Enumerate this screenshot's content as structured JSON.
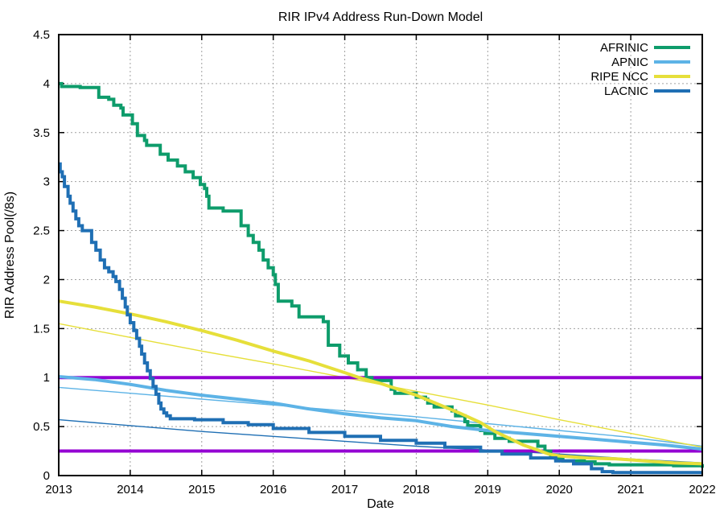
{
  "chart_data": {
    "type": "line",
    "title": "RIR IPv4 Address Run-Down Model",
    "xlabel": "Date",
    "ylabel": "RIR Address Pool(/8s)",
    "xlim": [
      2013,
      2022
    ],
    "ylim": [
      0,
      4.5
    ],
    "xticks": [
      2013,
      2014,
      2015,
      2016,
      2017,
      2018,
      2019,
      2020,
      2021,
      2022
    ],
    "yticks": [
      0,
      0.5,
      1,
      1.5,
      2,
      2.5,
      3,
      3.5,
      4,
      4.5
    ],
    "ytick_labels": [
      "0",
      "0.5",
      "1",
      "1.5",
      "2",
      "2.5",
      "3",
      "3.5",
      "4",
      "4.5"
    ],
    "grid": true,
    "legend_position": "top-right",
    "legend": [
      "AFRINIC",
      "APNIC",
      "RIPE NCC",
      "LACNIC"
    ],
    "colors": {
      "afrinic": "#0e9c6b",
      "apnic": "#5db3e6",
      "ripe_ncc": "#e6df3a",
      "lacnic": "#1f6fb4",
      "threshold": "#9400d3",
      "grid": "#a0a0a0",
      "border": "#000000"
    },
    "thresholds": [
      {
        "y": 1.0,
        "color": "#9400d3"
      },
      {
        "y": 0.25,
        "color": "#9400d3"
      }
    ],
    "series": [
      {
        "name": "AFRINIC",
        "role": "actual",
        "legend": true,
        "step": true,
        "color": "#0e9c6b",
        "width": 4,
        "points": [
          [
            2013,
            4.0
          ],
          [
            2013.04,
            3.97
          ],
          [
            2013.3,
            3.96
          ],
          [
            2013.56,
            3.86
          ],
          [
            2013.7,
            3.84
          ],
          [
            2013.77,
            3.78
          ],
          [
            2013.87,
            3.75
          ],
          [
            2013.9,
            3.68
          ],
          [
            2014.03,
            3.59
          ],
          [
            2014.1,
            3.47
          ],
          [
            2014.2,
            3.42
          ],
          [
            2014.23,
            3.37
          ],
          [
            2014.42,
            3.28
          ],
          [
            2014.53,
            3.22
          ],
          [
            2014.66,
            3.16
          ],
          [
            2014.77,
            3.1
          ],
          [
            2014.88,
            3.04
          ],
          [
            2014.98,
            2.97
          ],
          [
            2015.04,
            2.93
          ],
          [
            2015.07,
            2.85
          ],
          [
            2015.1,
            2.73
          ],
          [
            2015.3,
            2.7
          ],
          [
            2015.55,
            2.55
          ],
          [
            2015.65,
            2.45
          ],
          [
            2015.72,
            2.38
          ],
          [
            2015.8,
            2.3
          ],
          [
            2015.86,
            2.2
          ],
          [
            2015.93,
            2.12
          ],
          [
            2016.0,
            2.05
          ],
          [
            2016.03,
            1.95
          ],
          [
            2016.07,
            1.78
          ],
          [
            2016.26,
            1.73
          ],
          [
            2016.36,
            1.62
          ],
          [
            2016.7,
            1.57
          ],
          [
            2016.77,
            1.33
          ],
          [
            2016.93,
            1.22
          ],
          [
            2017.05,
            1.15
          ],
          [
            2017.18,
            1.08
          ],
          [
            2017.3,
            1.0
          ],
          [
            2017.38,
            0.97
          ],
          [
            2017.65,
            0.88
          ],
          [
            2017.7,
            0.84
          ],
          [
            2018.0,
            0.8
          ],
          [
            2018.13,
            0.78
          ],
          [
            2018.16,
            0.74
          ],
          [
            2018.25,
            0.7
          ],
          [
            2018.5,
            0.66
          ],
          [
            2018.55,
            0.61
          ],
          [
            2018.68,
            0.55
          ],
          [
            2018.72,
            0.51
          ],
          [
            2018.9,
            0.46
          ],
          [
            2018.96,
            0.43
          ],
          [
            2019.1,
            0.38
          ],
          [
            2019.3,
            0.35
          ],
          [
            2019.7,
            0.3
          ],
          [
            2019.8,
            0.25
          ],
          [
            2019.88,
            0.2
          ],
          [
            2019.95,
            0.17
          ],
          [
            2020.05,
            0.15
          ],
          [
            2020.35,
            0.14
          ],
          [
            2020.5,
            0.12
          ],
          [
            2020.7,
            0.11
          ],
          [
            2021.6,
            0.1
          ],
          [
            2022,
            0.08
          ]
        ]
      },
      {
        "name": "APNIC",
        "role": "actual",
        "legend": true,
        "step": false,
        "color": "#5db3e6",
        "width": 4,
        "points": [
          [
            2013,
            1.01
          ],
          [
            2013.5,
            0.98
          ],
          [
            2014,
            0.93
          ],
          [
            2014.5,
            0.87
          ],
          [
            2015,
            0.82
          ],
          [
            2015.5,
            0.78
          ],
          [
            2016,
            0.74
          ],
          [
            2016.5,
            0.68
          ],
          [
            2017,
            0.63
          ],
          [
            2017.5,
            0.59
          ],
          [
            2018,
            0.56
          ],
          [
            2018.5,
            0.5
          ],
          [
            2019,
            0.46
          ],
          [
            2019.5,
            0.43
          ],
          [
            2020,
            0.4
          ],
          [
            2020.5,
            0.37
          ],
          [
            2021,
            0.34
          ],
          [
            2021.5,
            0.31
          ],
          [
            2022,
            0.27
          ]
        ]
      },
      {
        "name": "RIPE NCC",
        "role": "actual",
        "legend": true,
        "step": false,
        "color": "#e6df3a",
        "width": 4,
        "points": [
          [
            2013,
            1.78
          ],
          [
            2013.5,
            1.72
          ],
          [
            2014,
            1.65
          ],
          [
            2014.5,
            1.57
          ],
          [
            2015,
            1.48
          ],
          [
            2015.5,
            1.38
          ],
          [
            2016,
            1.27
          ],
          [
            2016.5,
            1.17
          ],
          [
            2017,
            1.05
          ],
          [
            2017.2,
            1.0
          ],
          [
            2017.5,
            0.94
          ],
          [
            2018,
            0.82
          ],
          [
            2018.3,
            0.73
          ],
          [
            2018.6,
            0.64
          ],
          [
            2018.9,
            0.54
          ],
          [
            2019.1,
            0.45
          ],
          [
            2019.3,
            0.38
          ],
          [
            2019.5,
            0.31
          ],
          [
            2019.7,
            0.26
          ],
          [
            2019.85,
            0.22
          ],
          [
            2020,
            0.2
          ],
          [
            2020.4,
            0.18
          ],
          [
            2020.8,
            0.17
          ],
          [
            2021.2,
            0.15
          ],
          [
            2021.6,
            0.13
          ],
          [
            2022,
            0.12
          ]
        ]
      },
      {
        "name": "LACNIC",
        "role": "actual",
        "legend": true,
        "step": true,
        "color": "#1f6fb4",
        "width": 4,
        "points": [
          [
            2013,
            3.18
          ],
          [
            2013.02,
            3.1
          ],
          [
            2013.05,
            3.05
          ],
          [
            2013.08,
            2.95
          ],
          [
            2013.13,
            2.85
          ],
          [
            2013.16,
            2.78
          ],
          [
            2013.2,
            2.7
          ],
          [
            2013.24,
            2.62
          ],
          [
            2013.28,
            2.55
          ],
          [
            2013.33,
            2.5
          ],
          [
            2013.46,
            2.38
          ],
          [
            2013.52,
            2.3
          ],
          [
            2013.58,
            2.2
          ],
          [
            2013.64,
            2.12
          ],
          [
            2013.7,
            2.08
          ],
          [
            2013.76,
            2.03
          ],
          [
            2013.8,
            1.98
          ],
          [
            2013.85,
            1.9
          ],
          [
            2013.89,
            1.81
          ],
          [
            2013.93,
            1.72
          ],
          [
            2013.96,
            1.64
          ],
          [
            2014.0,
            1.56
          ],
          [
            2014.05,
            1.48
          ],
          [
            2014.09,
            1.4
          ],
          [
            2014.13,
            1.32
          ],
          [
            2014.16,
            1.24
          ],
          [
            2014.2,
            1.15
          ],
          [
            2014.24,
            1.07
          ],
          [
            2014.28,
            0.99
          ],
          [
            2014.32,
            0.91
          ],
          [
            2014.36,
            0.83
          ],
          [
            2014.4,
            0.74
          ],
          [
            2014.43,
            0.68
          ],
          [
            2014.47,
            0.64
          ],
          [
            2014.51,
            0.61
          ],
          [
            2014.56,
            0.58
          ],
          [
            2014.9,
            0.57
          ],
          [
            2015.3,
            0.54
          ],
          [
            2015.65,
            0.52
          ],
          [
            2016,
            0.48
          ],
          [
            2016.5,
            0.44
          ],
          [
            2017,
            0.4
          ],
          [
            2017.5,
            0.36
          ],
          [
            2018,
            0.33
          ],
          [
            2018.4,
            0.29
          ],
          [
            2018.9,
            0.25
          ],
          [
            2019.2,
            0.22
          ],
          [
            2019.6,
            0.18
          ],
          [
            2019.95,
            0.15
          ],
          [
            2020.2,
            0.12
          ],
          [
            2020.45,
            0.07
          ],
          [
            2020.6,
            0.04
          ],
          [
            2020.75,
            0.03
          ],
          [
            2022,
            0.03
          ]
        ]
      },
      {
        "name": "APNIC model",
        "role": "projection",
        "legend": false,
        "step": false,
        "color": "#5db3e6",
        "width": 1.4,
        "points": [
          [
            2013,
            0.9
          ],
          [
            2014,
            0.84
          ],
          [
            2015,
            0.78
          ],
          [
            2016,
            0.72
          ],
          [
            2017,
            0.66
          ],
          [
            2018,
            0.6
          ],
          [
            2019,
            0.53
          ],
          [
            2020,
            0.46
          ],
          [
            2021,
            0.39
          ],
          [
            2022,
            0.3
          ]
        ]
      },
      {
        "name": "RIPE NCC model",
        "role": "projection",
        "legend": false,
        "step": false,
        "color": "#e6df3a",
        "width": 1.4,
        "points": [
          [
            2013,
            1.55
          ],
          [
            2014,
            1.41
          ],
          [
            2015,
            1.27
          ],
          [
            2016,
            1.14
          ],
          [
            2017,
            1.0
          ],
          [
            2018,
            0.86
          ],
          [
            2019,
            0.72
          ],
          [
            2020,
            0.57
          ],
          [
            2021,
            0.43
          ],
          [
            2022,
            0.29
          ]
        ]
      },
      {
        "name": "LACNIC model",
        "role": "projection",
        "legend": false,
        "step": false,
        "color": "#1f6fb4",
        "width": 1.4,
        "points": [
          [
            2013,
            0.57
          ],
          [
            2014,
            0.51
          ],
          [
            2015,
            0.45
          ],
          [
            2016,
            0.4
          ],
          [
            2017,
            0.35
          ],
          [
            2018,
            0.3
          ],
          [
            2019,
            0.26
          ],
          [
            2020,
            0.22
          ],
          [
            2021,
            0.17
          ],
          [
            2022,
            0.13
          ]
        ]
      }
    ]
  }
}
